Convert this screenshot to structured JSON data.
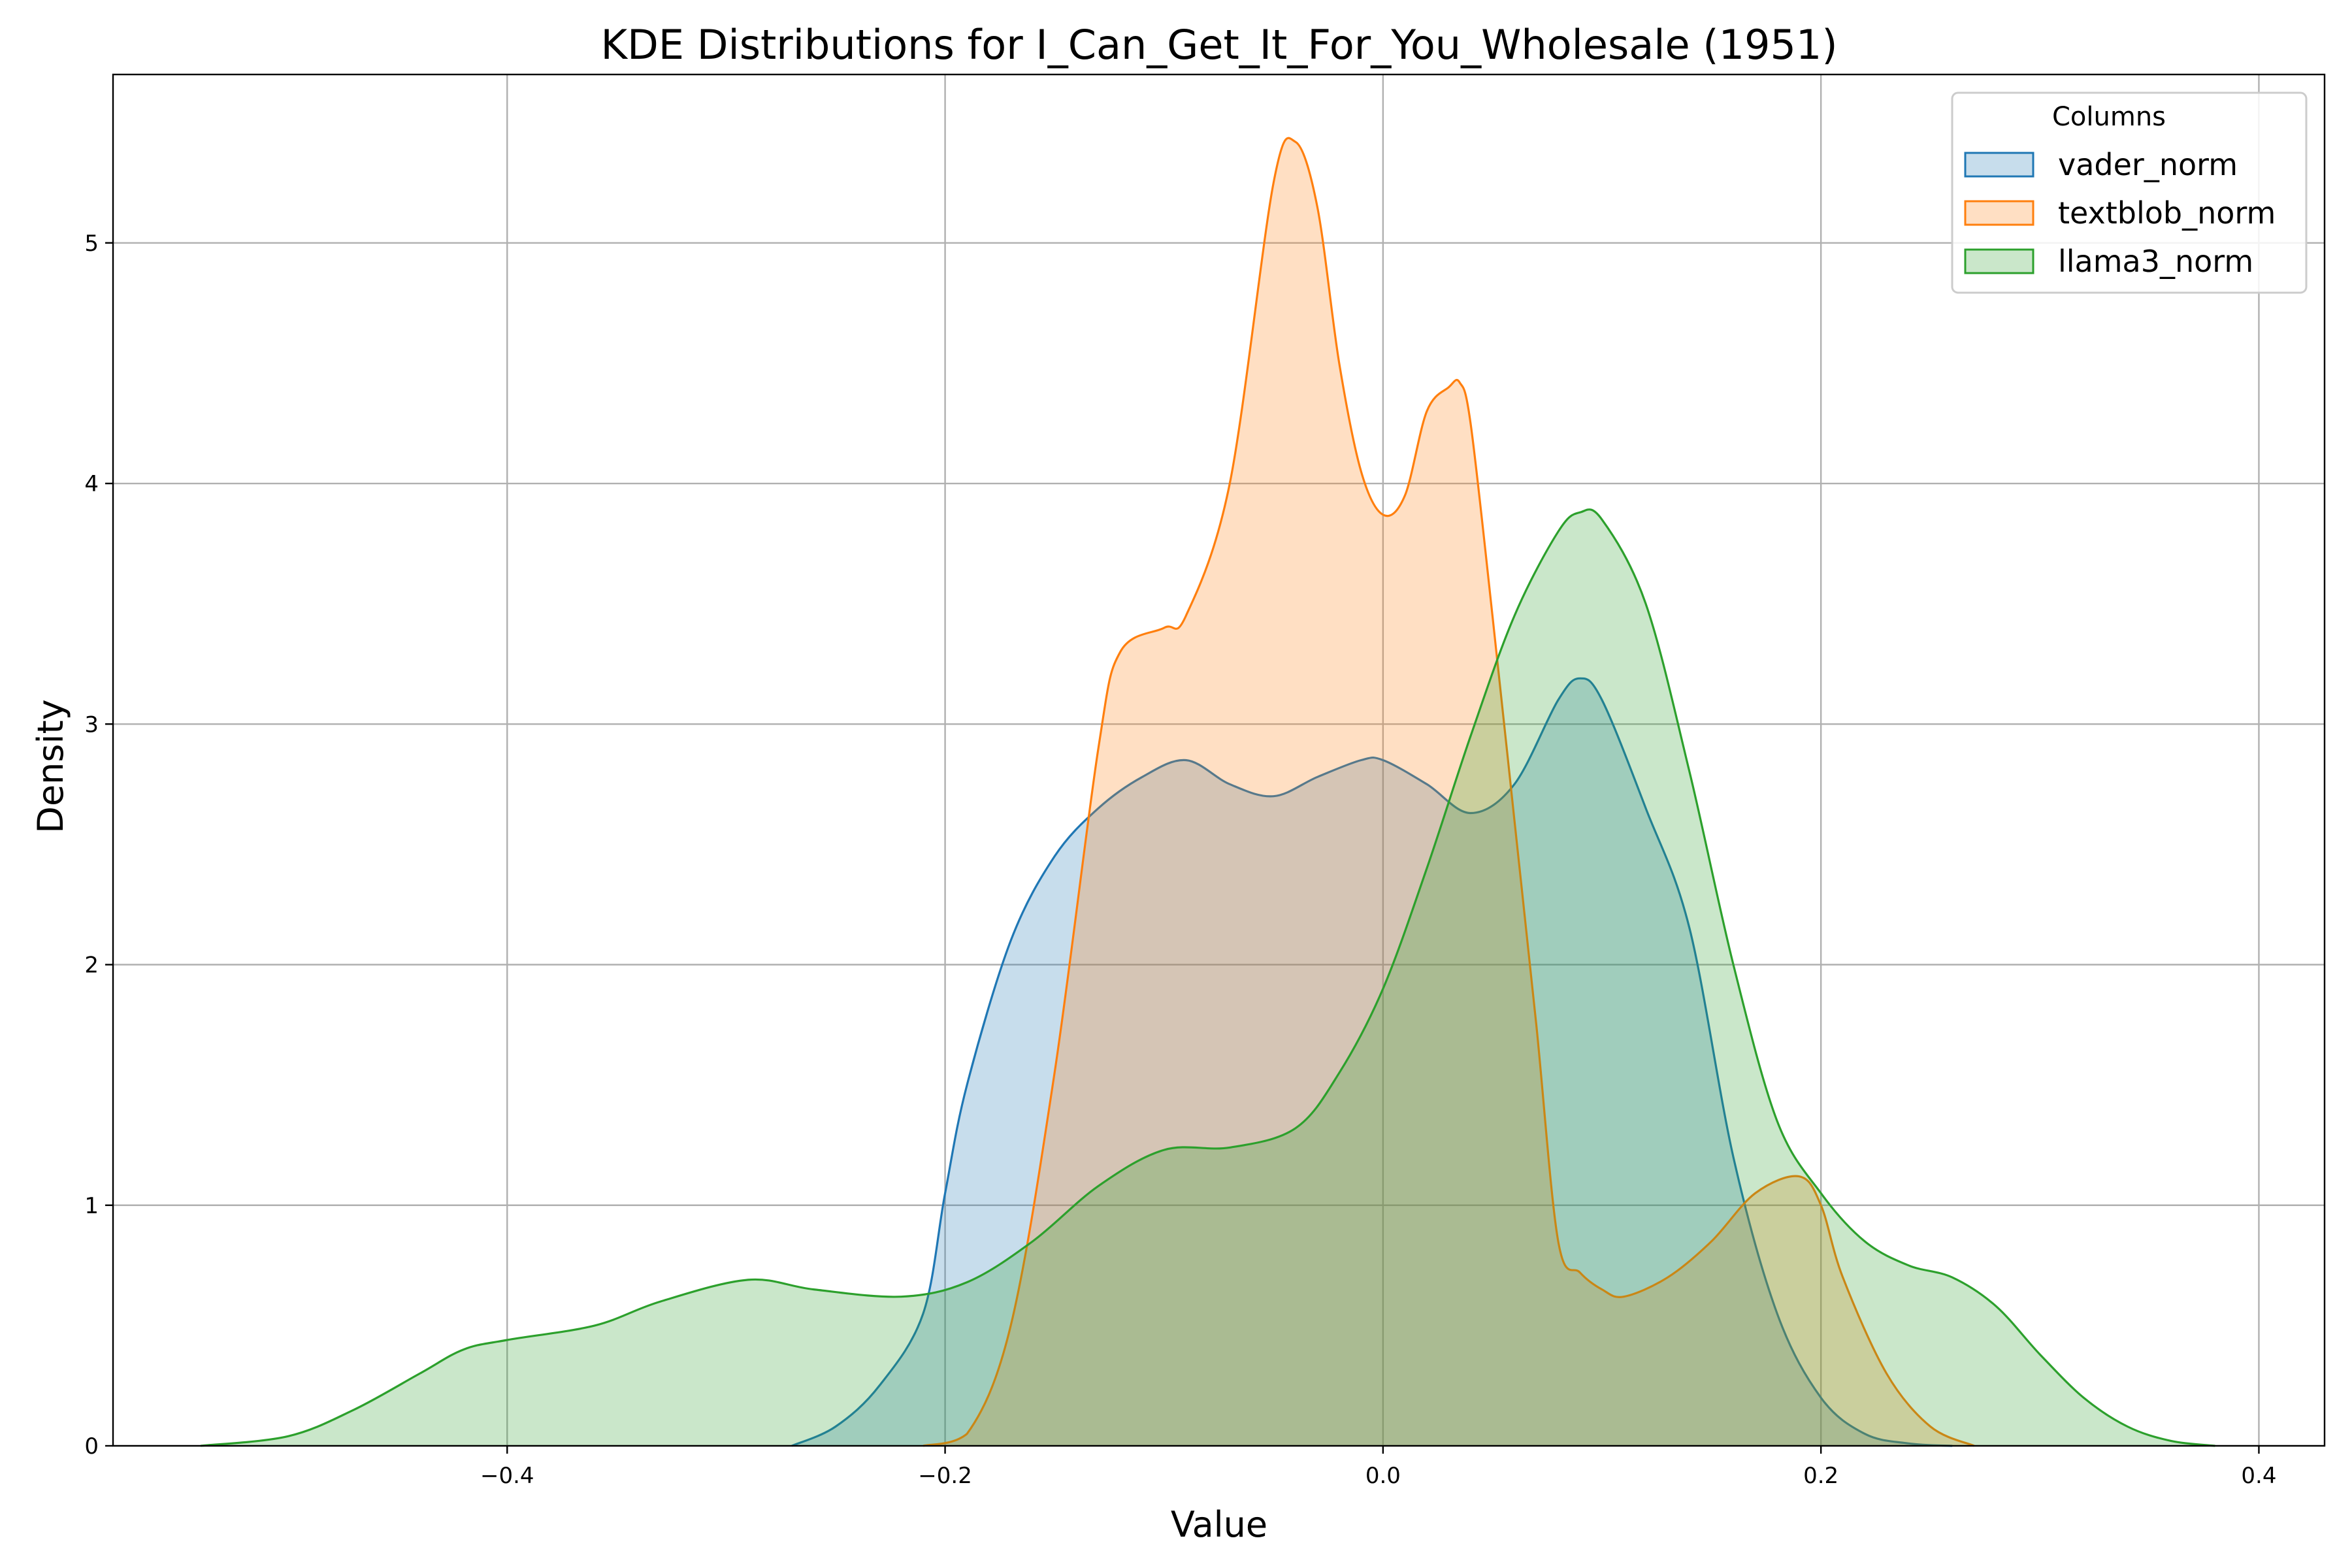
{
  "chart_data": {
    "type": "area",
    "title": "KDE Distributions for I_Can_Get_It_For_You_Wholesale (1951)",
    "xlabel": "Value",
    "ylabel": "Density",
    "xlim": [
      -0.58,
      0.43
    ],
    "ylim": [
      0,
      5.7
    ],
    "xticks": [
      -0.4,
      -0.2,
      0.0,
      0.2,
      0.4
    ],
    "xtick_labels": [
      "−0.4",
      "−0.2",
      "0.0",
      "0.2",
      "0.4"
    ],
    "yticks": [
      0,
      1,
      2,
      3,
      4,
      5
    ],
    "ytick_labels": [
      "0",
      "1",
      "2",
      "3",
      "4",
      "5"
    ],
    "grid": true,
    "legend": {
      "title": "Columns",
      "placement": "top-right"
    },
    "series": [
      {
        "name": "vader_norm",
        "color": "#1f77b4",
        "x": [
          -0.27,
          -0.25,
          -0.23,
          -0.21,
          -0.2,
          -0.19,
          -0.17,
          -0.15,
          -0.13,
          -0.11,
          -0.09,
          -0.07,
          -0.05,
          -0.03,
          -0.01,
          0.0,
          0.02,
          0.04,
          0.06,
          0.08,
          0.09,
          0.1,
          0.12,
          0.14,
          0.16,
          0.18,
          0.2,
          0.22,
          0.24,
          0.26
        ],
        "y": [
          0.0,
          0.08,
          0.25,
          0.55,
          1.05,
          1.5,
          2.1,
          2.45,
          2.65,
          2.78,
          2.85,
          2.75,
          2.7,
          2.78,
          2.85,
          2.85,
          2.75,
          2.63,
          2.75,
          3.1,
          3.19,
          3.1,
          2.65,
          2.15,
          1.2,
          0.55,
          0.2,
          0.05,
          0.01,
          0.0
        ]
      },
      {
        "name": "textblob_norm",
        "color": "#ff7f0e",
        "x": [
          -0.21,
          -0.19,
          -0.17,
          -0.15,
          -0.13,
          -0.12,
          -0.1,
          -0.09,
          -0.07,
          -0.05,
          -0.04,
          -0.03,
          -0.02,
          -0.01,
          0.0,
          0.01,
          0.02,
          0.03,
          0.035,
          0.04,
          0.05,
          0.06,
          0.07,
          0.08,
          0.09,
          0.1,
          0.11,
          0.13,
          0.15,
          0.17,
          0.19,
          0.2,
          0.21,
          0.23,
          0.25,
          0.27
        ],
        "y": [
          0.0,
          0.05,
          0.5,
          1.55,
          2.9,
          3.3,
          3.4,
          3.45,
          4.0,
          5.25,
          5.42,
          5.15,
          4.5,
          4.05,
          3.87,
          3.95,
          4.3,
          4.4,
          4.42,
          4.25,
          3.45,
          2.6,
          1.75,
          0.85,
          0.72,
          0.65,
          0.62,
          0.7,
          0.85,
          1.05,
          1.12,
          1.0,
          0.7,
          0.3,
          0.08,
          0.0
        ]
      },
      {
        "name": "llama3_norm",
        "color": "#2ca02c",
        "x": [
          -0.54,
          -0.5,
          -0.47,
          -0.44,
          -0.42,
          -0.4,
          -0.36,
          -0.33,
          -0.29,
          -0.26,
          -0.22,
          -0.19,
          -0.16,
          -0.13,
          -0.1,
          -0.07,
          -0.04,
          -0.02,
          0.0,
          0.02,
          0.04,
          0.06,
          0.08,
          0.09,
          0.1,
          0.12,
          0.14,
          0.16,
          0.18,
          0.2,
          0.22,
          0.24,
          0.26,
          0.28,
          0.3,
          0.32,
          0.34,
          0.36,
          0.38
        ],
        "y": [
          0.0,
          0.04,
          0.15,
          0.3,
          0.4,
          0.44,
          0.5,
          0.6,
          0.69,
          0.65,
          0.62,
          0.68,
          0.85,
          1.08,
          1.23,
          1.24,
          1.32,
          1.55,
          1.9,
          2.4,
          2.95,
          3.45,
          3.8,
          3.88,
          3.85,
          3.5,
          2.8,
          2.0,
          1.35,
          1.05,
          0.85,
          0.75,
          0.7,
          0.58,
          0.38,
          0.2,
          0.08,
          0.02,
          0.0
        ]
      }
    ]
  }
}
